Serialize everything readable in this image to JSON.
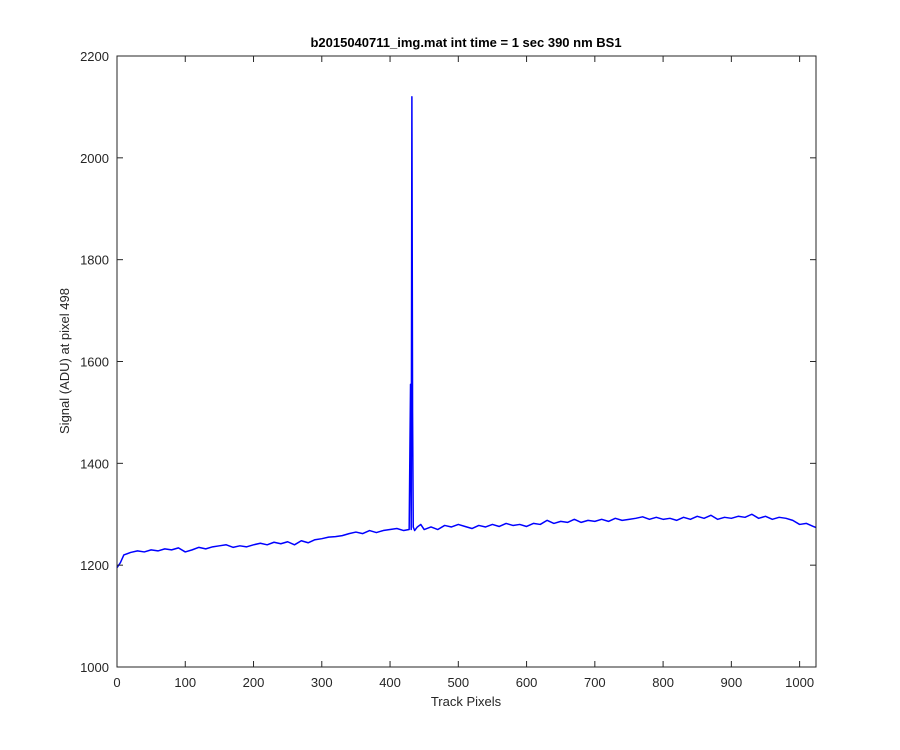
{
  "chart_data": {
    "type": "line",
    "title": "b2015040711_img.mat int time = 1 sec  390 nm BS1",
    "xlabel": "Track Pixels",
    "ylabel": "Signal (ADU) at pixel 498",
    "xlim": [
      0,
      1024
    ],
    "ylim": [
      1000,
      2200
    ],
    "xticks": [
      0,
      100,
      200,
      300,
      400,
      500,
      600,
      700,
      800,
      900,
      1000
    ],
    "yticks": [
      1000,
      1200,
      1400,
      1600,
      1800,
      2000,
      2200
    ],
    "grid": false,
    "legend": "none",
    "line_color": "#0000ff",
    "series": [
      {
        "x": [
          0,
          5,
          10,
          20,
          30,
          40,
          50,
          60,
          70,
          80,
          90,
          100,
          110,
          120,
          130,
          140,
          150,
          160,
          170,
          180,
          190,
          200,
          210,
          220,
          230,
          240,
          250,
          260,
          270,
          280,
          290,
          300,
          310,
          320,
          330,
          340,
          350,
          360,
          370,
          380,
          390,
          400,
          410,
          420,
          428,
          430,
          431,
          432,
          433,
          434,
          436,
          440,
          445,
          450,
          460,
          470,
          480,
          490,
          500,
          510,
          520,
          530,
          540,
          550,
          560,
          570,
          580,
          590,
          600,
          610,
          620,
          630,
          640,
          650,
          660,
          670,
          680,
          690,
          700,
          710,
          720,
          730,
          740,
          750,
          760,
          770,
          780,
          790,
          800,
          810,
          820,
          830,
          840,
          850,
          860,
          870,
          880,
          890,
          900,
          910,
          920,
          930,
          940,
          950,
          960,
          970,
          980,
          990,
          1000,
          1010,
          1020,
          1024
        ],
        "y": [
          1195,
          1205,
          1220,
          1225,
          1228,
          1226,
          1230,
          1228,
          1232,
          1230,
          1234,
          1226,
          1230,
          1235,
          1232,
          1236,
          1238,
          1240,
          1235,
          1238,
          1236,
          1240,
          1243,
          1240,
          1245,
          1242,
          1246,
          1240,
          1248,
          1244,
          1250,
          1252,
          1255,
          1256,
          1258,
          1262,
          1265,
          1262,
          1268,
          1264,
          1268,
          1270,
          1272,
          1268,
          1270,
          1555,
          1270,
          2120,
          1500,
          1275,
          1268,
          1275,
          1280,
          1270,
          1275,
          1270,
          1278,
          1275,
          1280,
          1276,
          1272,
          1278,
          1275,
          1280,
          1276,
          1282,
          1278,
          1280,
          1276,
          1282,
          1280,
          1288,
          1282,
          1286,
          1284,
          1290,
          1284,
          1288,
          1286,
          1290,
          1286,
          1292,
          1288,
          1290,
          1292,
          1295,
          1290,
          1294,
          1290,
          1292,
          1288,
          1294,
          1290,
          1296,
          1292,
          1298,
          1290,
          1294,
          1292,
          1296,
          1294,
          1300,
          1292,
          1296,
          1290,
          1294,
          1292,
          1288,
          1280,
          1282,
          1276,
          1274
        ]
      }
    ]
  }
}
